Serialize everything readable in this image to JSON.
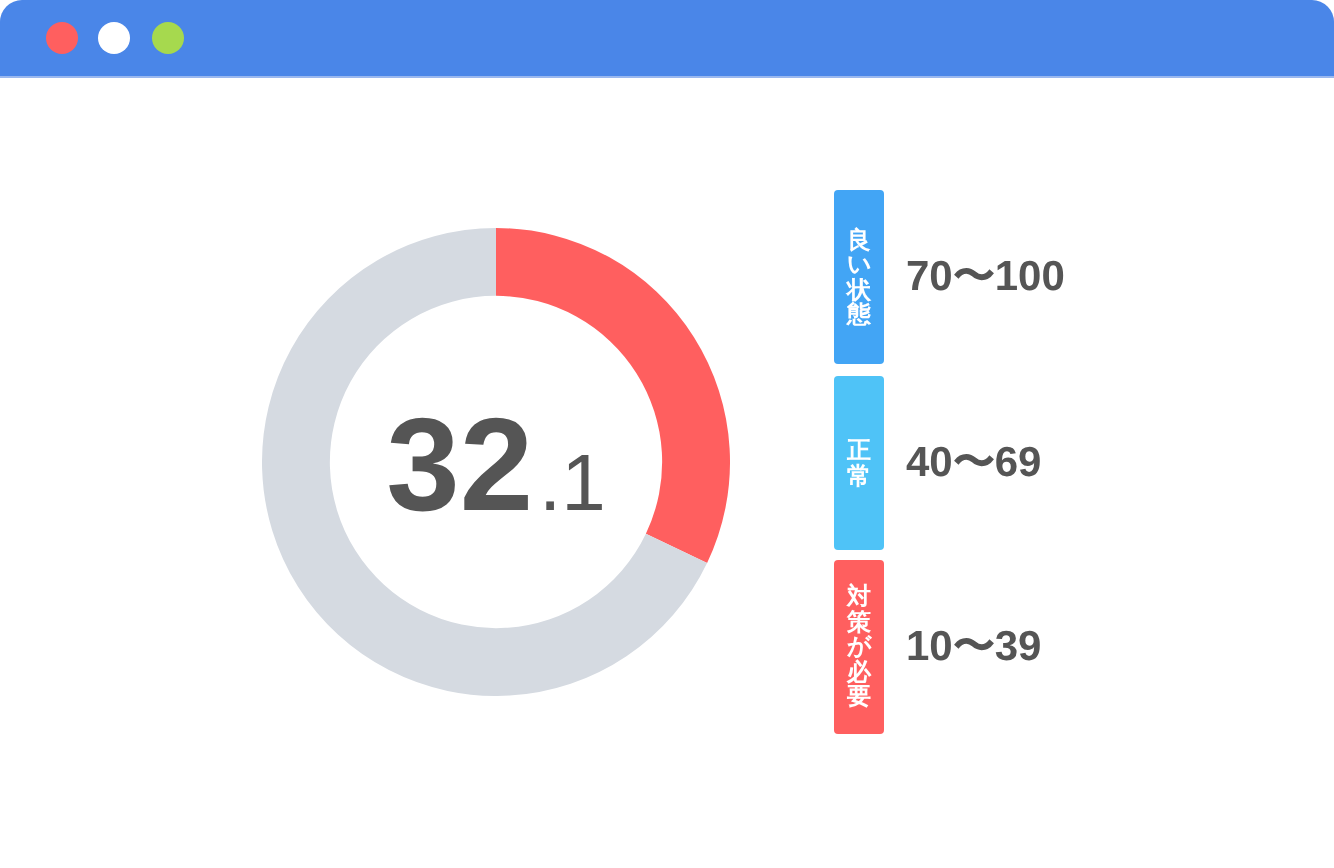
{
  "chart_data": {
    "type": "donut",
    "categories": [
      null,
      null
    ],
    "values": [
      32.1,
      67.9
    ],
    "colors": [
      "#ff5f5f",
      "#d5dae1"
    ],
    "annotations": [
      "32.1",
      "良い状態",
      "70〜100",
      "正常",
      "40〜69",
      "対策が必要",
      "10〜39"
    ]
  }
}
